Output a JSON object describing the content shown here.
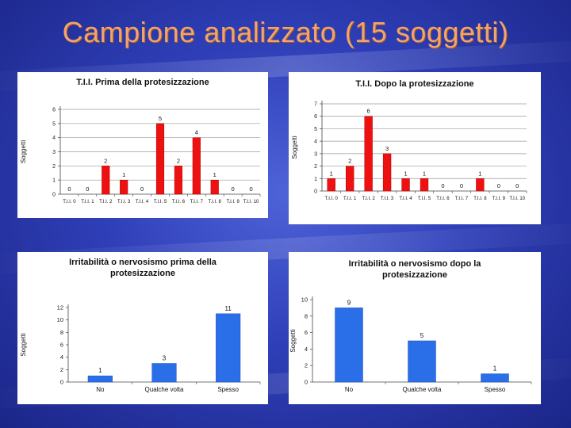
{
  "slide": {
    "title": "Campione analizzato (15 soggetti)"
  },
  "chart_data": [
    {
      "type": "bar",
      "title": [
        "T.I.I. Prima della protesizzazione"
      ],
      "ylabel": "Soggetti",
      "categories": [
        "T.I.I. 0",
        "T.I.I. 1",
        "T.I.I. 2",
        "T.I.I. 3",
        "T.I.I. 4",
        "T.I.I. 5",
        "T.I.I. 6",
        "T.I.I. 7",
        "T.I.I. 8",
        "T.I.I. 9",
        "T.I.I. 10"
      ],
      "values": [
        0,
        0,
        2,
        1,
        0,
        5,
        2,
        4,
        1,
        0,
        0
      ],
      "ylim": [
        0,
        6
      ],
      "yticks": [
        0,
        1,
        2,
        3,
        4,
        5,
        6
      ],
      "color": "#ee1111",
      "grid": true
    },
    {
      "type": "bar",
      "title": [
        "T.I.I. Dopo la protesizzazione"
      ],
      "ylabel": "Soggetti",
      "categories": [
        "T.I.I. 0",
        "T.I.I. 1",
        "T.I.I. 2",
        "T.I.I. 3",
        "T.I.I. 4",
        "T.I.I. 5",
        "T.I.I. 6",
        "T.I.I. 7",
        "T.I.I. 8",
        "T.I.I. 9",
        "T.I.I. 10"
      ],
      "values": [
        1,
        2,
        6,
        3,
        1,
        1,
        0,
        0,
        1,
        0,
        0
      ],
      "ylim": [
        0,
        7
      ],
      "yticks": [
        0,
        1,
        2,
        3,
        4,
        5,
        6,
        7
      ],
      "color": "#ee1111",
      "grid": true
    },
    {
      "type": "bar",
      "title": [
        "Irritabilità o nervosismo prima della",
        "protesizzazione"
      ],
      "ylabel": "Soggetti",
      "categories": [
        "No",
        "Qualche volta",
        "Spesso"
      ],
      "values": [
        1,
        3,
        11
      ],
      "ylim": [
        0,
        12
      ],
      "yticks": [
        0,
        2,
        4,
        6,
        8,
        10,
        12
      ],
      "color": "#2a6ee8",
      "grid": false
    },
    {
      "type": "bar",
      "title": [
        "Irritabilità o nervosismo dopo la",
        "protesizzazione"
      ],
      "ylabel": "Soggetti",
      "categories": [
        "No",
        "Qualche volta",
        "Spesso"
      ],
      "values": [
        9,
        5,
        1
      ],
      "ylim": [
        0,
        10
      ],
      "yticks": [
        0,
        2,
        4,
        6,
        8,
        10
      ],
      "color": "#2a6ee8",
      "grid": false
    }
  ]
}
